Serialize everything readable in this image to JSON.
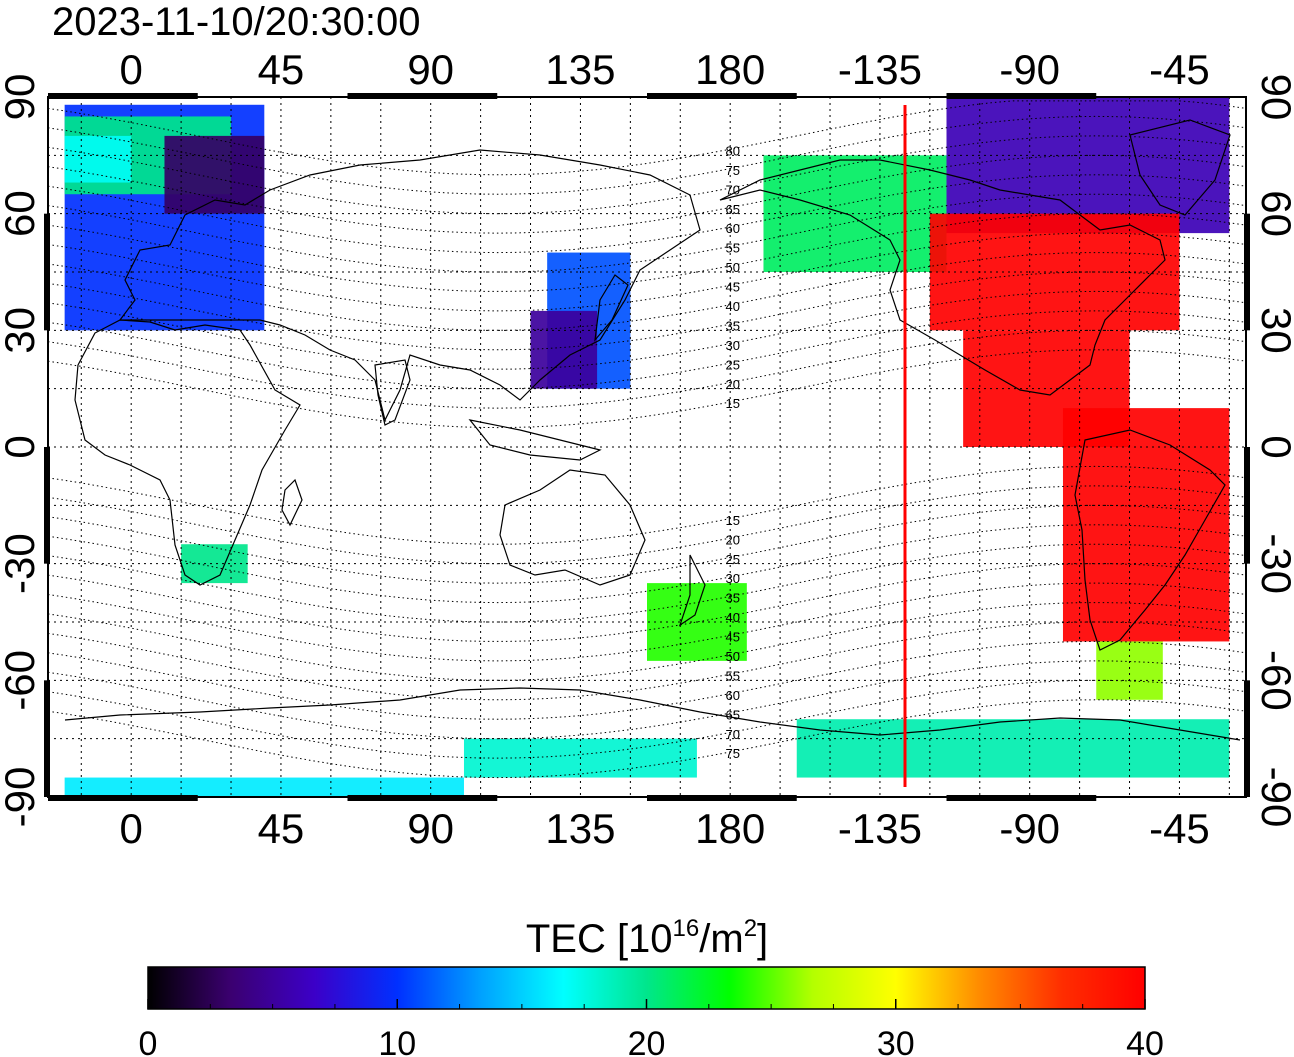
{
  "title": "2023-11-10/20:30:00",
  "map": {
    "projection": "equirectangular",
    "lon_ticks": [
      {
        "lon": 0,
        "label": "0"
      },
      {
        "lon": 45,
        "label": "45"
      },
      {
        "lon": 90,
        "label": "90"
      },
      {
        "lon": 135,
        "label": "135"
      },
      {
        "lon": 180,
        "label": "180"
      },
      {
        "lon": 225,
        "label": "-135"
      },
      {
        "lon": 270,
        "label": "-90"
      },
      {
        "lon": 315,
        "label": "-45"
      }
    ],
    "lat_ticks": [
      {
        "lat": 90,
        "label": "90"
      },
      {
        "lat": 60,
        "label": "60"
      },
      {
        "lat": 30,
        "label": "30"
      },
      {
        "lat": 0,
        "label": "0"
      },
      {
        "lat": -30,
        "label": "-30"
      },
      {
        "lat": -60,
        "label": "-60"
      },
      {
        "lat": -90,
        "label": "-90"
      }
    ],
    "terminator_longitude": "-130",
    "terminator_color": "#ff0000",
    "magnetic_latitude_labels": [
      "80",
      "75",
      "70",
      "65",
      "60",
      "55",
      "50",
      "45",
      "40",
      "35",
      "30",
      "25",
      "20",
      "15",
      "15",
      "20",
      "25",
      "30",
      "35",
      "40",
      "45",
      "50",
      "55",
      "60",
      "65",
      "70",
      "75"
    ]
  },
  "colorbar": {
    "title": "TEC  [10",
    "title_exp": "16",
    "title_unit": "/m",
    "title_unit_exp": "2",
    "title_close": "]",
    "min": 0,
    "max": 40,
    "tick_labels": [
      "0",
      "10",
      "20",
      "30",
      "40"
    ],
    "colors": [
      "#000000",
      "#3b0070",
      "#3c00c8",
      "#0030ff",
      "#00a0ff",
      "#00ffff",
      "#00e68c",
      "#00ff00",
      "#b4ff00",
      "#ffff00",
      "#ff8c00",
      "#ff2d00",
      "#ff0000"
    ]
  },
  "chart_data": {
    "type": "heatmap",
    "title": "2023-11-10/20:30:00",
    "xlabel": "",
    "ylabel": "",
    "x_range_lon": [
      -25,
      335
    ],
    "y_range_lat": [
      -90,
      90
    ],
    "value_range": [
      0,
      40
    ],
    "unit": "10^16/m^2",
    "regions": [
      {
        "lon": [
          -20,
          40
        ],
        "lat": [
          30,
          88
        ],
        "tec": 10
      },
      {
        "lon": [
          -20,
          30
        ],
        "lat": [
          65,
          85
        ],
        "tec": 20
      },
      {
        "lon": [
          10,
          40
        ],
        "lat": [
          60,
          80
        ],
        "tec": 3
      },
      {
        "lon": [
          -20,
          0
        ],
        "lat": [
          68,
          80
        ],
        "tec": 17
      },
      {
        "lon": [
          125,
          150
        ],
        "lat": [
          15,
          50
        ],
        "tec": 11
      },
      {
        "lon": [
          120,
          140
        ],
        "lat": [
          15,
          35
        ],
        "tec": 5
      },
      {
        "lon": [
          245,
          330
        ],
        "lat": [
          55,
          90
        ],
        "tec": 6
      },
      {
        "lon": [
          190,
          245
        ],
        "lat": [
          45,
          75
        ],
        "tec": 21
      },
      {
        "lon": [
          240,
          315
        ],
        "lat": [
          30,
          60
        ],
        "tec": 40
      },
      {
        "lon": [
          250,
          300
        ],
        "lat": [
          0,
          30
        ],
        "tec": 40
      },
      {
        "lon": [
          280,
          330
        ],
        "lat": [
          -50,
          10
        ],
        "tec": 40
      },
      {
        "lon": [
          290,
          310
        ],
        "lat": [
          -65,
          -50
        ],
        "tec": 26
      },
      {
        "lon": [
          15,
          35
        ],
        "lat": [
          -35,
          -25
        ],
        "tec": 20
      },
      {
        "lon": [
          155,
          185
        ],
        "lat": [
          -55,
          -35
        ],
        "tec": 24
      },
      {
        "lon": [
          200,
          330
        ],
        "lat": [
          -85,
          -70
        ],
        "tec": 19
      },
      {
        "lon": [
          -20,
          100
        ],
        "lat": [
          -90,
          -85
        ],
        "tec": 16
      },
      {
        "lon": [
          100,
          170
        ],
        "lat": [
          -85,
          -75
        ],
        "tec": 18
      }
    ]
  }
}
